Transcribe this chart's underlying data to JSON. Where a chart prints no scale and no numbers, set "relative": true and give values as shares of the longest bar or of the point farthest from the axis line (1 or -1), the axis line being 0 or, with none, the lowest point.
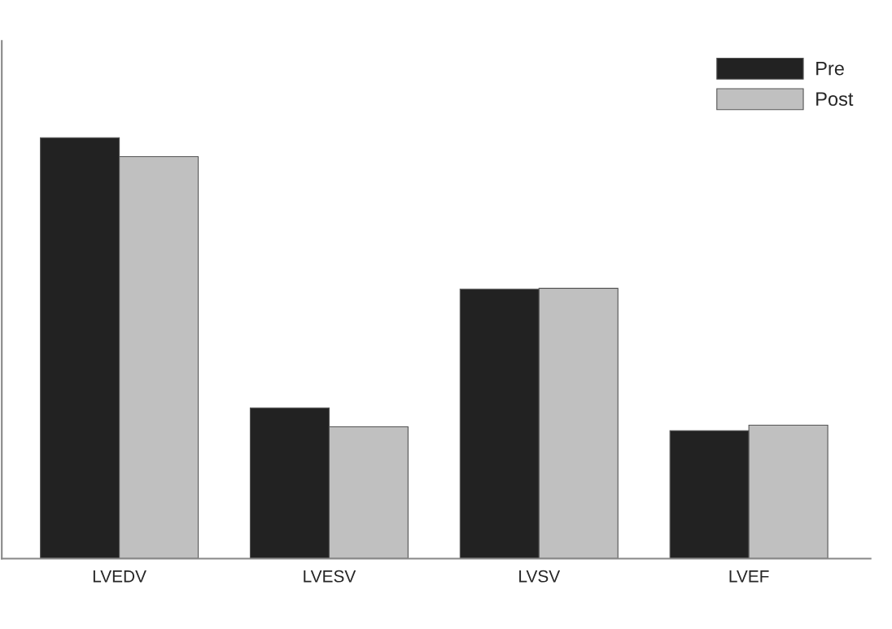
{
  "chart_data": {
    "type": "bar",
    "relative": true,
    "categories": [
      "LVEDV",
      "LVESV",
      "LVSV",
      "LVEF"
    ],
    "series": [
      {
        "name": "Pre",
        "color": "#222222",
        "values": [
          1,
          0.358,
          0.64,
          0.304
        ]
      },
      {
        "name": "Post",
        "color": "#c0c0c0",
        "values": [
          0.955,
          0.313,
          0.642,
          0.317
        ]
      }
    ],
    "legend": "top right",
    "grid": false
  }
}
